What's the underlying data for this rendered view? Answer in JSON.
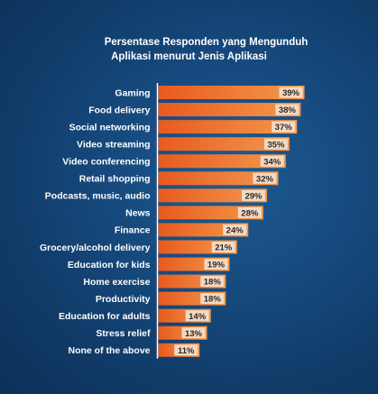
{
  "chart_data": {
    "type": "bar",
    "orientation": "horizontal",
    "title": "Persentase Responden yang Mengunduh",
    "subtitle": "Aplikasi menurut Jenis Aplikasi",
    "categories": [
      "Gaming",
      "Food delivery",
      "Social networking",
      "Video streaming",
      "Video conferencing",
      "Retail shopping",
      "Podcasts, music, audio",
      "News",
      "Finance",
      "Grocery/alcohol delivery",
      "Education for kids",
      "Home exercise",
      "Productivity",
      "Education for adults",
      "Stress relief",
      "None of the above"
    ],
    "values": [
      39,
      38,
      37,
      35,
      34,
      32,
      29,
      28,
      24,
      21,
      19,
      18,
      18,
      14,
      13,
      11
    ],
    "value_labels": [
      "39%",
      "38%",
      "37%",
      "35%",
      "34%",
      "32%",
      "29%",
      "28%",
      "24%",
      "21%",
      "19%",
      "18%",
      "18%",
      "14%",
      "13%",
      "11%"
    ],
    "xlim": [
      0,
      39
    ],
    "grid": false,
    "bar_color_start": "#e85a1e",
    "bar_color_end": "#f39a4c",
    "label_box_color": "#f5d9c2",
    "background_color": "#15487c",
    "text_color": "#ffffff"
  }
}
